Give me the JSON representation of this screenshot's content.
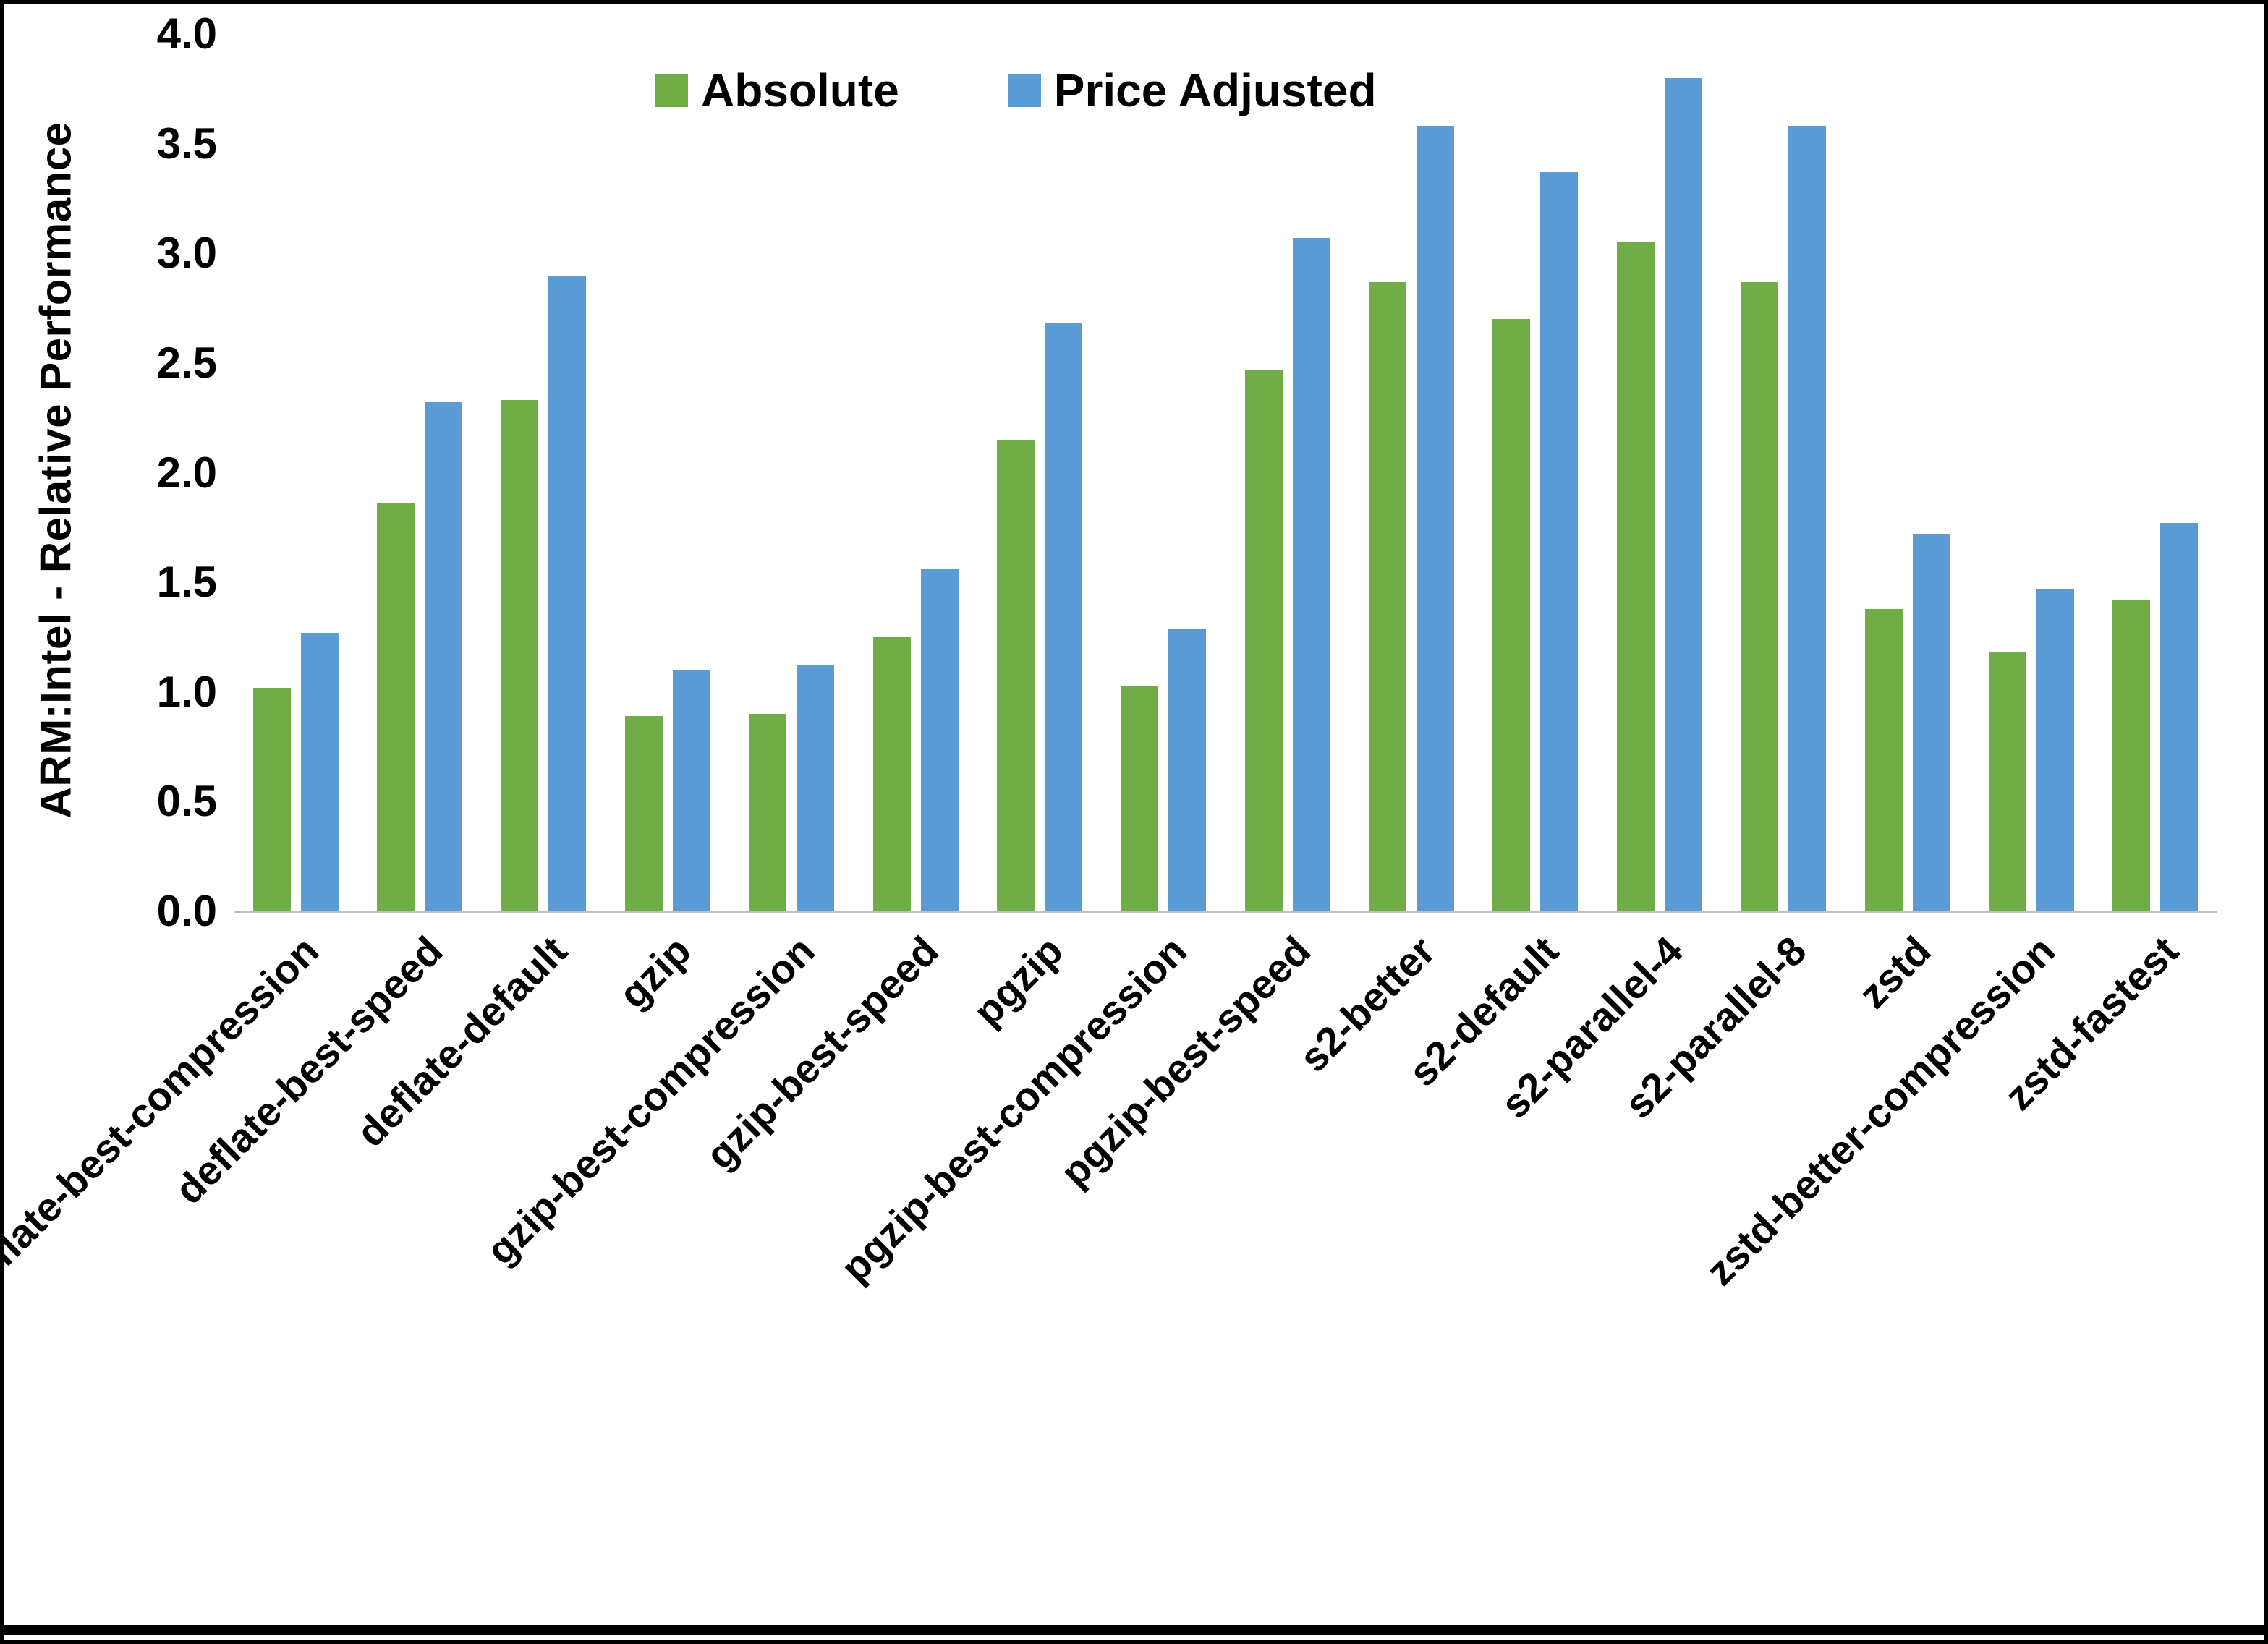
{
  "chart_data": {
    "type": "bar",
    "title": "",
    "xlabel": "",
    "ylabel": "ARM:Intel - Relative Performance",
    "ylim": [
      0,
      4.0
    ],
    "ytick_step": 0.5,
    "grid": false,
    "legend_position": "top",
    "categories": [
      "deflate-best-compression",
      "deflate-best-speed",
      "deflate-default",
      "gzip",
      "gzip-best-compression",
      "gzip-best-speed",
      "pgzip",
      "pgzip-best-compression",
      "pgzip-best-speed",
      "s2-better",
      "s2-default",
      "s2-parallel-4",
      "s2-parallel-8",
      "zstd",
      "zstd-better-compression",
      "zstd-fastest"
    ],
    "series": [
      {
        "name": "Absolute",
        "color": "#70AD47",
        "values": [
          1.02,
          1.86,
          2.33,
          0.89,
          0.9,
          1.25,
          2.15,
          1.03,
          2.47,
          2.87,
          2.7,
          3.05,
          2.87,
          1.38,
          1.18,
          1.42
        ]
      },
      {
        "name": "Price Adjusted",
        "color": "#5B9BD5",
        "values": [
          1.27,
          2.32,
          2.9,
          1.1,
          1.12,
          1.56,
          2.68,
          1.29,
          3.07,
          3.58,
          3.37,
          3.8,
          3.58,
          1.72,
          1.47,
          1.77
        ]
      }
    ]
  }
}
